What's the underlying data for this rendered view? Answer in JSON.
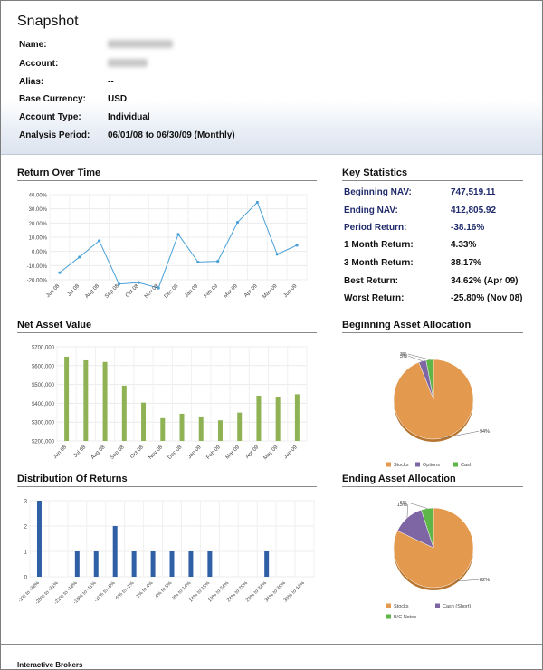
{
  "title": "Snapshot",
  "account": [
    {
      "label": "Name:",
      "value": "",
      "redacted": true
    },
    {
      "label": "Account:",
      "value": "",
      "redacted": true
    },
    {
      "label": "Alias:",
      "value": "--"
    },
    {
      "label": "Base Currency:",
      "value": "USD"
    },
    {
      "label": "Account Type:",
      "value": "Individual"
    },
    {
      "label": "Analysis Period:",
      "value": "06/01/08 to 06/30/09 (Monthly)"
    }
  ],
  "sections": {
    "return_over_time": "Return Over Time",
    "net_asset_value": "Net Asset Value",
    "distribution": "Distribution Of Returns",
    "key_statistics": "Key Statistics",
    "beginning_allocation": "Beginning Asset Allocation",
    "ending_allocation": "Ending Asset Allocation"
  },
  "key_statistics": [
    {
      "label": "Beginning NAV:",
      "value": "747,519.11",
      "highlight": true
    },
    {
      "label": "Ending NAV:",
      "value": "412,805.92",
      "highlight": true
    },
    {
      "label": "Period Return:",
      "value": "-38.16%",
      "highlight": true
    },
    {
      "label": "1 Month Return:",
      "value": "4.33%",
      "highlight": false
    },
    {
      "label": "3 Month Return:",
      "value": "38.17%",
      "highlight": false
    },
    {
      "label": "Best Return:",
      "value": "34.62% (Apr 09)",
      "highlight": false
    },
    {
      "label": "Worst Return:",
      "value": "-25.80% (Nov 08)",
      "highlight": false
    }
  ],
  "footer": "Interactive Brokers",
  "chart_data": [
    {
      "type": "line",
      "categories": [
        "Jun 08",
        "Jul 08",
        "Aug 08",
        "Sep 08",
        "Oct 08",
        "Nov 08",
        "Dec 08",
        "Jan 09",
        "Feb 09",
        "Mar 09",
        "Apr 09",
        "May 09",
        "Jun 09"
      ],
      "values": [
        -15,
        -4,
        7.5,
        -23,
        -22,
        -25.8,
        12,
        -7.5,
        -7,
        20.5,
        34.62,
        -2,
        4.33
      ],
      "yticks": [
        "40.00%",
        "30.00%",
        "20.00%",
        "10.00%",
        "0.00%",
        "-10.00%",
        "-20.00%"
      ],
      "ylim": [
        -20,
        40
      ],
      "color": "#4aa0d8",
      "grid": true
    },
    {
      "type": "bar",
      "categories": [
        "Jun 08",
        "Jul 08",
        "Aug 08",
        "Sep 08",
        "Oct 08",
        "Nov 08",
        "Dec 08",
        "Jan 09",
        "Feb 09",
        "Mar 09",
        "Apr 09",
        "May 09",
        "Jun 09"
      ],
      "values": [
        640000,
        618000,
        608000,
        465000,
        362000,
        268000,
        295000,
        273000,
        255000,
        302000,
        404000,
        396000,
        413000
      ],
      "yticks": [
        "$700,000",
        "$600,000",
        "$500,000",
        "$400,000",
        "$300,000",
        "$200,000"
      ],
      "ylim": [
        130000,
        700000
      ],
      "color": "#8fb354",
      "grid": true
    },
    {
      "type": "bar",
      "categories": [
        "-1% to -28%",
        "-28% to -21%",
        "-21% to -18%",
        "-18% to -11%",
        "-11% to -6%",
        "-6% to -1%",
        "-1% to 4%",
        "4% to 9%",
        "9% to 14%",
        "14% to 19%",
        "19% to 24%",
        "24% to 29%",
        "29% to 34%",
        "34% to 39%",
        "39% to 44%"
      ],
      "values": [
        3,
        0,
        1,
        1,
        2,
        1,
        1,
        1,
        1,
        1,
        0,
        0,
        1,
        0,
        0
      ],
      "yticks": [
        "3",
        "2",
        "1",
        "0"
      ],
      "ylim": [
        0,
        3
      ],
      "color": "#2f5fa5",
      "grid": true
    },
    {
      "type": "pie",
      "labels": [
        "Stocks",
        "Options",
        "Cash"
      ],
      "values": [
        94,
        3,
        3
      ],
      "slice_labels": [
        "94%",
        "3%",
        "3%"
      ],
      "colors": [
        "#e49a4e",
        "#7d66a3",
        "#5fb648"
      ],
      "legend": "bottom"
    },
    {
      "type": "pie",
      "labels": [
        "Stocks",
        "Cash (Short)",
        "B/C Notes"
      ],
      "values": [
        82,
        13,
        5
      ],
      "slice_labels": [
        "82%",
        "13%",
        "5%"
      ],
      "colors": [
        "#e49a4e",
        "#7d66a3",
        "#5fb648"
      ],
      "legend": "bottom"
    }
  ]
}
